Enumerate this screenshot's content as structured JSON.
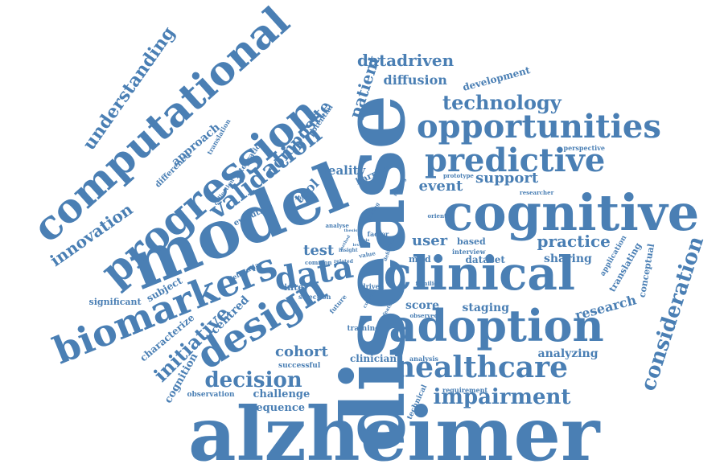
{
  "cloud": {
    "color": "#4a7fb4",
    "words": [
      {
        "id": "alzheimer",
        "text": "alzheimer"
      },
      {
        "id": "disease",
        "text": "disease"
      },
      {
        "id": "cognitive",
        "text": "cognitive"
      },
      {
        "id": "model",
        "text": "model"
      },
      {
        "id": "computational",
        "text": "computational"
      },
      {
        "id": "progression",
        "text": "progression"
      },
      {
        "id": "clinical",
        "text": "clinical"
      },
      {
        "id": "adoption",
        "text": "adoption"
      },
      {
        "id": "biomarkers",
        "text": "biomarkers"
      },
      {
        "id": "design",
        "text": "design"
      },
      {
        "id": "opportunities",
        "text": "opportunities"
      },
      {
        "id": "predictive",
        "text": "predictive"
      },
      {
        "id": "healthcare",
        "text": "healthcare"
      },
      {
        "id": "data",
        "text": "data"
      },
      {
        "id": "validation",
        "text": "validation"
      },
      {
        "id": "consideration",
        "text": "consideration"
      },
      {
        "id": "impairment",
        "text": "impairment"
      },
      {
        "id": "technology",
        "text": "technology"
      },
      {
        "id": "understanding",
        "text": "understanding"
      },
      {
        "id": "decision",
        "text": "decision"
      },
      {
        "id": "initiative",
        "text": "initiative"
      },
      {
        "id": "composite",
        "text": "composite"
      },
      {
        "id": "innovation",
        "text": "innovation"
      },
      {
        "id": "practice",
        "text": "practice"
      },
      {
        "id": "datadriven",
        "text": "datadriven"
      },
      {
        "id": "patient",
        "text": "patient"
      },
      {
        "id": "event",
        "text": "event"
      },
      {
        "id": "support",
        "text": "support"
      },
      {
        "id": "cohort",
        "text": "cohort"
      },
      {
        "id": "research",
        "text": "research"
      },
      {
        "id": "diffusion",
        "text": "diffusion"
      },
      {
        "id": "development",
        "text": "development"
      },
      {
        "id": "staging",
        "text": "staging"
      },
      {
        "id": "sharing",
        "text": "sharing"
      },
      {
        "id": "analyzing",
        "text": "analyzing"
      },
      {
        "id": "user",
        "text": "user"
      },
      {
        "id": "test",
        "text": "test"
      },
      {
        "id": "tool",
        "text": "tool"
      },
      {
        "id": "reality",
        "text": "reality"
      },
      {
        "id": "centred",
        "text": "centred"
      },
      {
        "id": "approach",
        "text": "approach"
      },
      {
        "id": "characterize",
        "text": "characterize"
      },
      {
        "id": "cognition",
        "text": "cognition"
      },
      {
        "id": "sequence",
        "text": "sequence"
      },
      {
        "id": "challenge",
        "text": "challenge"
      },
      {
        "id": "subject",
        "text": "subject"
      },
      {
        "id": "score",
        "text": "score"
      },
      {
        "id": "clinician",
        "text": "clinician"
      },
      {
        "id": "dataset",
        "text": "dataset"
      },
      {
        "id": "barrier",
        "text": "barrier"
      },
      {
        "id": "translating",
        "text": "translating"
      },
      {
        "id": "conceptual",
        "text": "conceptual"
      },
      {
        "id": "significant",
        "text": "significant"
      },
      {
        "id": "difference",
        "text": "difference"
      },
      {
        "id": "inter",
        "text": "inter"
      },
      {
        "id": "mild",
        "text": "mild"
      },
      {
        "id": "based",
        "text": "based"
      },
      {
        "id": "evolution",
        "text": "evolution"
      },
      {
        "id": "training",
        "text": "training"
      },
      {
        "id": "technical",
        "text": "technical"
      },
      {
        "id": "application",
        "text": "application"
      },
      {
        "id": "potential",
        "text": "potential"
      },
      {
        "id": "integration",
        "text": "integration"
      },
      {
        "id": "translation",
        "text": "translation"
      },
      {
        "id": "perspective",
        "text": "perspective"
      },
      {
        "id": "observation",
        "text": "observation"
      },
      {
        "id": "successful",
        "text": "successful"
      },
      {
        "id": "requirement",
        "text": "requirement"
      },
      {
        "id": "analysis",
        "text": "analysis"
      },
      {
        "id": "selection",
        "text": "selection"
      },
      {
        "id": "future",
        "text": "future"
      },
      {
        "id": "dementia",
        "text": "dementia"
      },
      {
        "id": "collection",
        "text": "collection"
      },
      {
        "id": "prototype",
        "text": "prototype"
      },
      {
        "id": "researcher",
        "text": "researcher"
      },
      {
        "id": "oriented",
        "text": "oriented"
      },
      {
        "id": "families",
        "text": "families"
      },
      {
        "id": "driven",
        "text": "driven"
      },
      {
        "id": "interview",
        "text": "interview"
      },
      {
        "id": "observed",
        "text": "observed"
      },
      {
        "id": "factor",
        "text": "factor"
      },
      {
        "id": "value",
        "text": "value"
      },
      {
        "id": "analyse",
        "text": "analyse"
      },
      {
        "id": "common",
        "text": "common"
      },
      {
        "id": "related",
        "text": "related"
      },
      {
        "id": "insight",
        "text": "insight"
      },
      {
        "id": "human",
        "text": "human"
      },
      {
        "id": "making",
        "text": "making"
      },
      {
        "id": "testing",
        "text": "testing"
      },
      {
        "id": "thesis",
        "text": "thesis"
      },
      {
        "id": "basis",
        "text": "basis"
      },
      {
        "id": "current",
        "text": "current"
      },
      {
        "id": "feature",
        "text": "feature"
      },
      {
        "id": "definitely",
        "text": "definitely"
      },
      {
        "id": "method",
        "text": "method"
      },
      {
        "id": "level",
        "text": "level"
      }
    ]
  }
}
